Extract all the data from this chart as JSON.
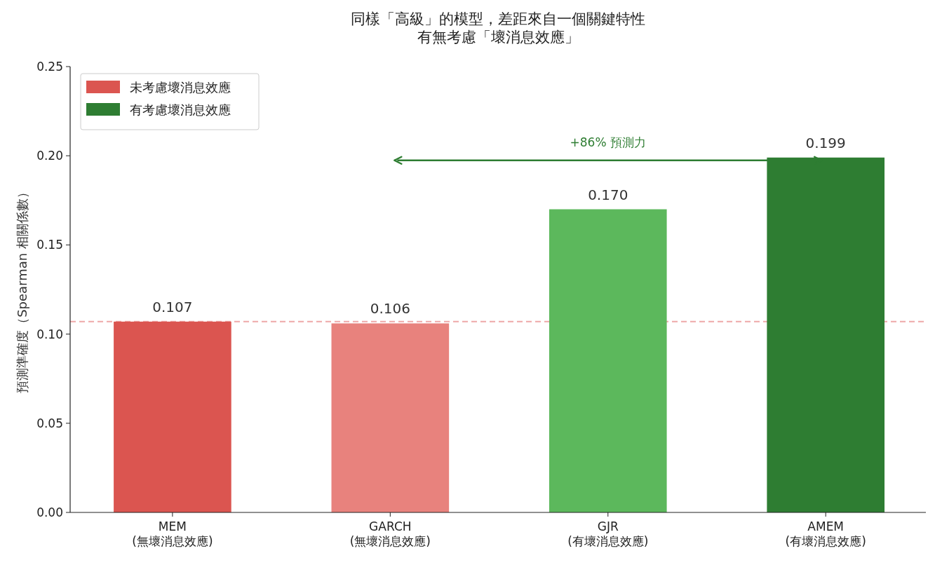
{
  "chart_data": {
    "type": "bar",
    "title": "同樣「高級」的模型，差距來自一個關鍵特性",
    "subtitle": "有無考慮「壞消息效應」",
    "ylabel": "預測準確度（Spearman 相關係數）",
    "categories": [
      "MEM\n(無壞消息效應)",
      "GARCH\n(無壞消息效應)",
      "GJR\n(有壞消息效應)",
      "AMEM\n(有壞消息效應)"
    ],
    "series": [
      {
        "name": "未考慮壞消息效應",
        "color": "#db5550",
        "colors": [
          "#db5550",
          "#e8827d",
          null,
          null
        ],
        "values": [
          0.107,
          0.106,
          null,
          null
        ],
        "value_labels": [
          "0.107",
          "0.106",
          null,
          null
        ]
      },
      {
        "name": "有考慮壞消息效應",
        "color": "#2e7d32",
        "colors": [
          null,
          null,
          "#5cb85c",
          "#2e7d32"
        ],
        "values": [
          null,
          null,
          0.17,
          0.199
        ],
        "value_labels": [
          null,
          null,
          "0.170",
          "0.199"
        ]
      }
    ],
    "ylim": [
      0,
      0.25
    ],
    "yticks": [
      {
        "value": 0,
        "label": "0.00"
      },
      0.05,
      {
        "value": 0.1,
        "label": "0.10"
      },
      0.15,
      {
        "value": 0.2,
        "label": "0.20"
      },
      0.25
    ],
    "ref_lines": [
      {
        "axis": "y",
        "value": 0.107,
        "color": "#eea8a8",
        "line_style": "dashed"
      }
    ],
    "annotations": [
      "+86% 預測力"
    ],
    "grid": false,
    "legend": "top left"
  }
}
